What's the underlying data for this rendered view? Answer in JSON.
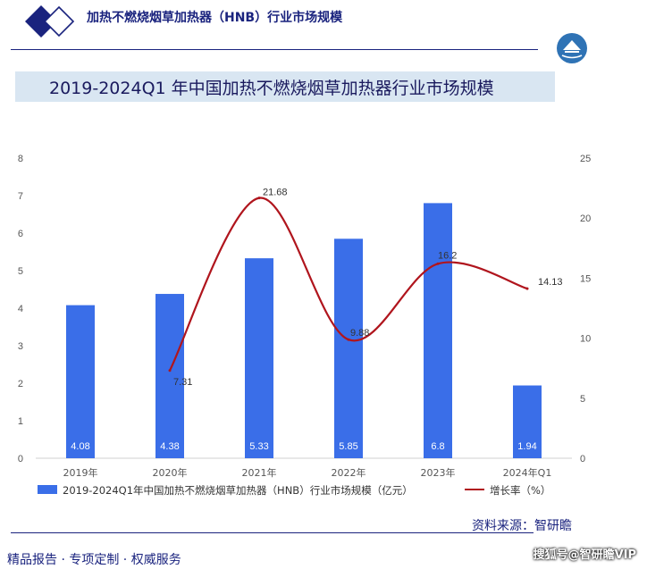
{
  "header": {
    "title": "加热不燃烧烟草加热器（HNB）行业市场规模"
  },
  "banner": {
    "title": "2019-2024Q1 年中国加热不燃烧烟草加热器行业市场规模"
  },
  "source": "资料来源：智研瞻",
  "footer": {
    "left": "精品报告 · 专项定制 · 权威服务",
    "right": "搜狐号@智研瞻VIP"
  },
  "colors": {
    "bar": "#3a6ee8",
    "line": "#b0151d",
    "header": "#1a237e",
    "banner": "#d9e6f2"
  },
  "chart_data": {
    "type": "bar",
    "categories": [
      "2019年",
      "2020年",
      "2021年",
      "2022年",
      "2023年",
      "2024年Q1"
    ],
    "series": [
      {
        "name": "2019-2024Q1年中国加热不燃烧烟草加热器（HNB）行业市场规模（亿元）",
        "type": "bar",
        "axis": "left",
        "values": [
          4.08,
          4.38,
          5.33,
          5.85,
          6.8,
          1.94
        ],
        "labels": [
          "4.08",
          "4.38",
          "5.33",
          "5.85",
          "6.8",
          "1.94"
        ]
      },
      {
        "name": "增长率（%）",
        "type": "line",
        "axis": "right",
        "values": [
          null,
          7.31,
          21.68,
          9.88,
          16.2,
          14.13
        ],
        "labels": [
          "",
          "7.31",
          "21.68",
          "9.88",
          "16.2",
          "14.13"
        ]
      }
    ],
    "ylim_left": [
      0,
      8
    ],
    "yticks_left": [
      "0",
      "1",
      "2",
      "3",
      "4",
      "5",
      "6",
      "7",
      "8"
    ],
    "ylim_right": [
      0,
      25
    ],
    "yticks_right": [
      "0",
      "5",
      "10",
      "15",
      "20",
      "25"
    ],
    "grid": false,
    "legend_position": "bottom"
  }
}
